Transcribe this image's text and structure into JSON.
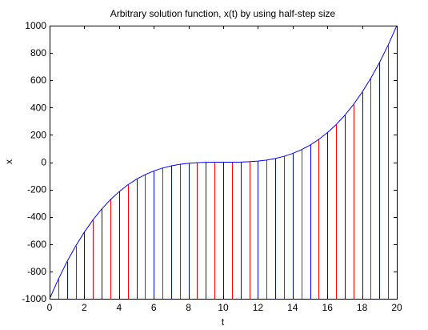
{
  "chart_data": {
    "type": "line",
    "title": "Arbitrary solution function, x(t) by using half-step size",
    "xlabel": "t",
    "ylabel": "x",
    "xlim": [
      0,
      20
    ],
    "ylim": [
      -1000,
      1000
    ],
    "xticks": [
      0,
      2,
      4,
      6,
      8,
      10,
      12,
      14,
      16,
      18,
      20
    ],
    "yticks": [
      -1000,
      -800,
      -600,
      -400,
      -200,
      0,
      200,
      400,
      600,
      800,
      1000
    ],
    "grid": false,
    "series": [
      {
        "color": "#0000ff",
        "x": [
          0,
          0.5,
          1,
          1.5,
          2,
          2.5,
          3,
          3.5,
          4,
          4.5,
          5,
          5.5,
          6,
          6.5,
          7,
          7.5,
          8,
          8.5,
          9,
          9.5,
          10,
          10.5,
          11,
          11.5,
          12,
          12.5,
          13,
          13.5,
          14,
          14.5,
          15,
          15.5,
          16,
          16.5,
          17,
          17.5,
          18,
          18.5,
          19,
          19.5,
          20
        ],
        "y": [
          -1000,
          -857.4,
          -729,
          -614.1,
          -512,
          -421.9,
          -343,
          -274.6,
          -216,
          -166.4,
          -125,
          -91.1,
          -64,
          -42.9,
          -27,
          -15.6,
          -8,
          -3.4,
          -1,
          -0.1,
          0,
          0.1,
          1,
          3.4,
          8,
          15.6,
          27,
          42.9,
          64,
          91.1,
          125,
          166.4,
          216,
          274.6,
          343,
          421.9,
          512,
          614.1,
          729,
          857.4,
          1000
        ]
      }
    ],
    "stems": {
      "x": [
        0,
        0.5,
        1,
        1.5,
        2,
        2.5,
        3,
        3.5,
        4,
        4.5,
        5,
        5.5,
        6,
        6.5,
        7,
        7.5,
        8,
        8.5,
        9,
        9.5,
        10,
        10.5,
        11,
        11.5,
        12,
        12.5,
        13,
        13.5,
        14,
        14.5,
        15,
        15.5,
        16,
        16.5,
        17,
        17.5,
        18,
        18.5,
        19,
        19.5,
        20
      ],
      "y": [
        -1000,
        -857.4,
        -729,
        -614.1,
        -512,
        -421.9,
        -343,
        -274.6,
        -216,
        -166.4,
        -125,
        -91.1,
        -64,
        -42.9,
        -27,
        -15.6,
        -8,
        -3.4,
        -1,
        -0.1,
        0,
        0.1,
        1,
        3.4,
        8,
        15.6,
        27,
        42.9,
        64,
        91.1,
        125,
        166.4,
        216,
        274.6,
        343,
        421.9,
        512,
        614.1,
        729,
        857.4,
        1000
      ],
      "colors": [
        "#0000ff",
        "#ff0000"
      ]
    }
  }
}
